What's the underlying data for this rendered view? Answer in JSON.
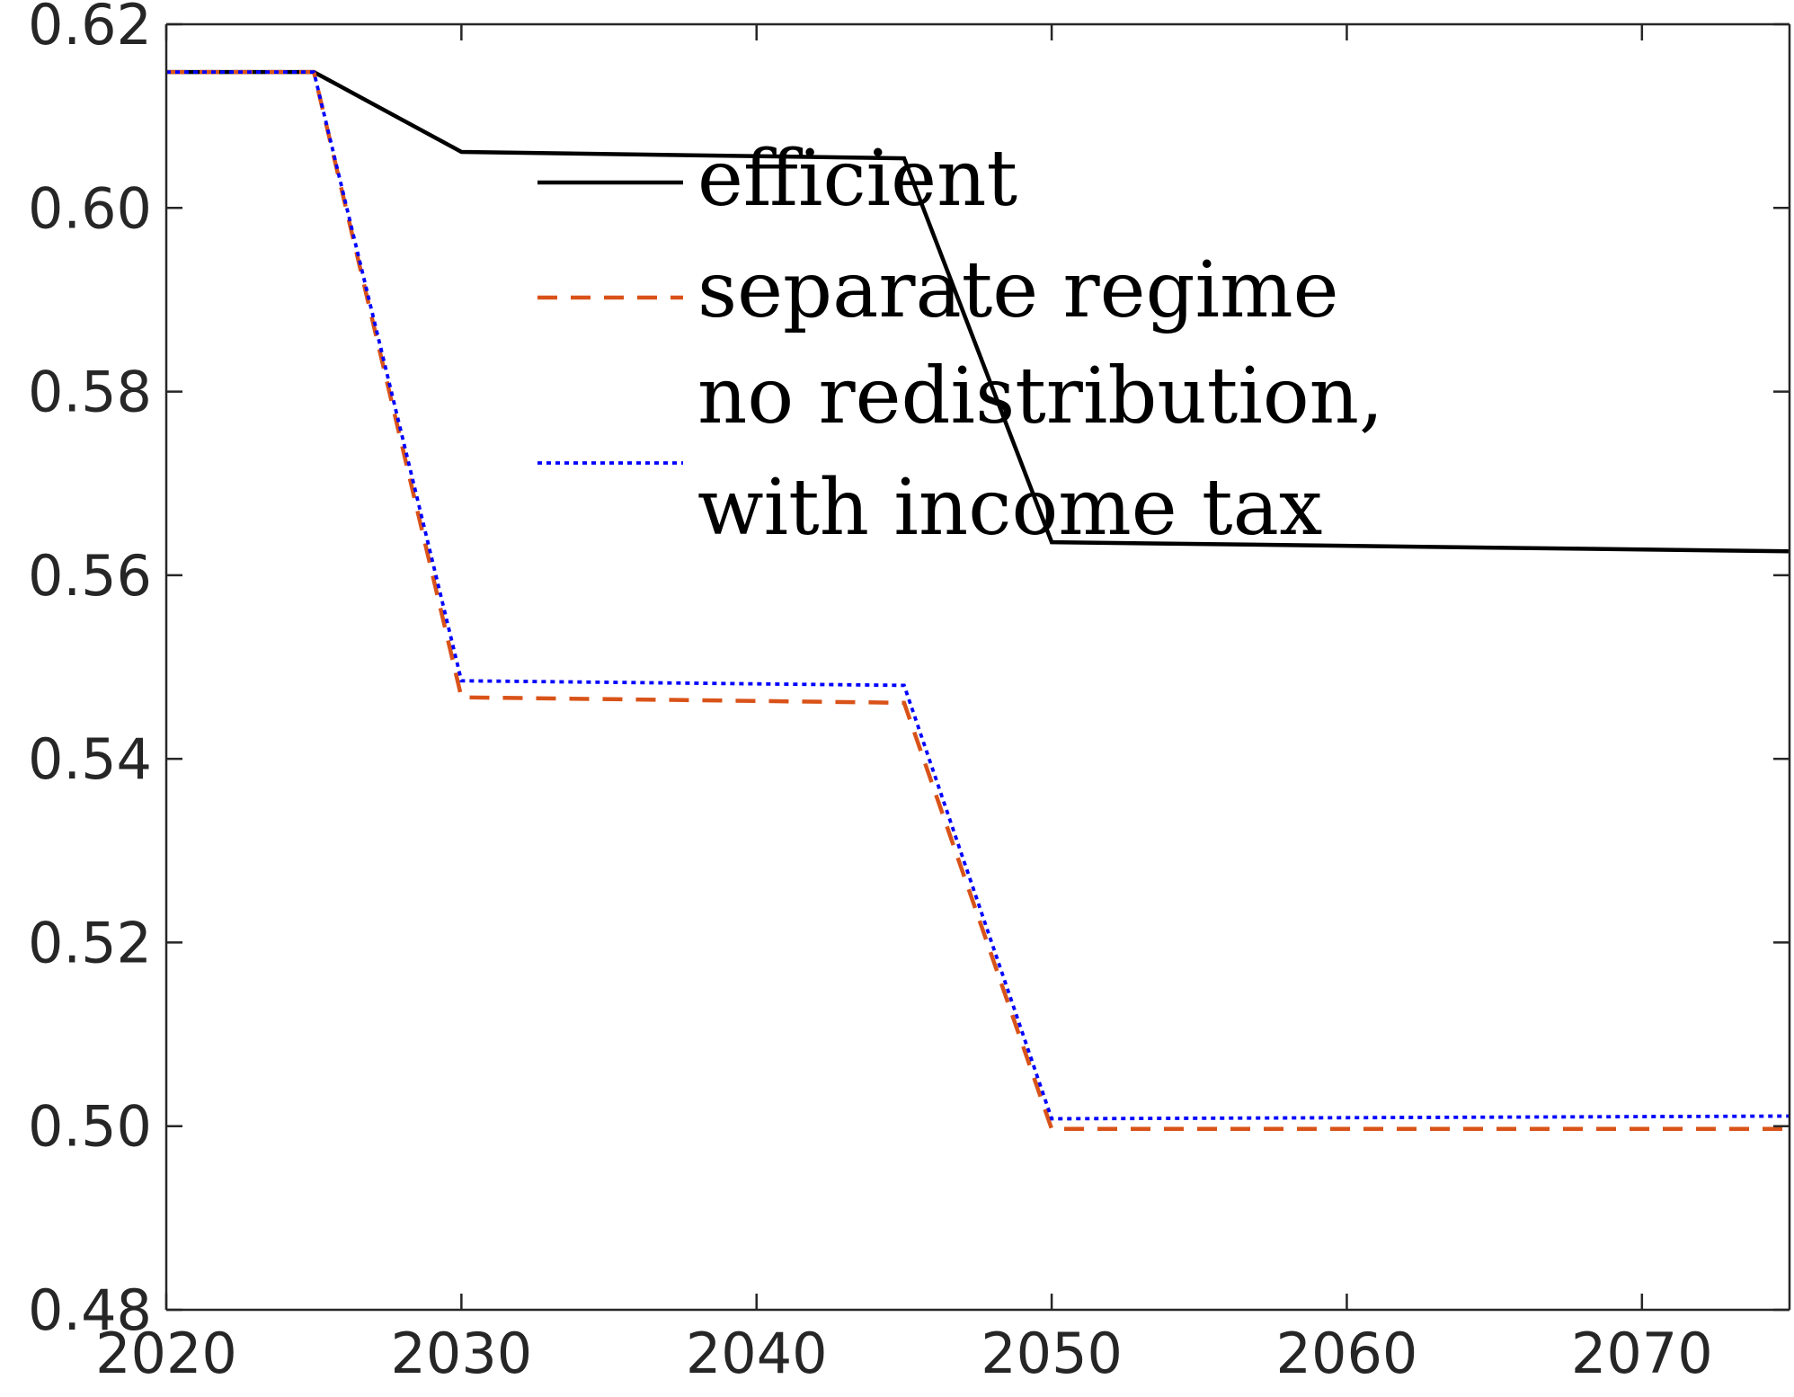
{
  "chart_data": {
    "type": "line",
    "title": "",
    "xlabel": "",
    "ylabel": "",
    "xlim": [
      2020,
      2075
    ],
    "ylim": [
      0.48,
      0.62
    ],
    "x_ticks": [
      2020,
      2030,
      2040,
      2050,
      2060,
      2070
    ],
    "x_tick_labels": [
      "2020",
      "2030",
      "2040",
      "2050",
      "2060",
      "2070"
    ],
    "y_ticks": [
      0.48,
      0.5,
      0.52,
      0.54,
      0.56,
      0.58,
      0.6,
      0.62
    ],
    "y_tick_labels": [
      "0.48",
      "0.50",
      "0.52",
      "0.54",
      "0.56",
      "0.58",
      "0.60",
      "0.62"
    ],
    "grid": false,
    "legend_position": "top-center",
    "series": [
      {
        "name": "efficient",
        "legend_lines": [
          "efficient"
        ],
        "color": "#000000",
        "style": "solid",
        "x": [
          2020,
          2025,
          2030,
          2045,
          2050,
          2075
        ],
        "y": [
          0.6148,
          0.6148,
          0.6061,
          0.6054,
          0.5636,
          0.5626
        ]
      },
      {
        "name": "separate regime",
        "legend_lines": [
          "separate regime"
        ],
        "color": "#D95319",
        "style": "dashed",
        "x": [
          2020,
          2025,
          2030,
          2045,
          2050,
          2075
        ],
        "y": [
          0.6148,
          0.6148,
          0.5467,
          0.5461,
          0.4997,
          0.4997
        ]
      },
      {
        "name": "no redistribution, with income tax",
        "legend_lines": [
          "no redistribution,",
          "with income tax"
        ],
        "color": "#0000FF",
        "style": "dotted",
        "x": [
          2020,
          2025,
          2030,
          2045,
          2050,
          2075
        ],
        "y": [
          0.6148,
          0.6148,
          0.5485,
          0.548,
          0.5008,
          0.5011
        ]
      }
    ]
  }
}
